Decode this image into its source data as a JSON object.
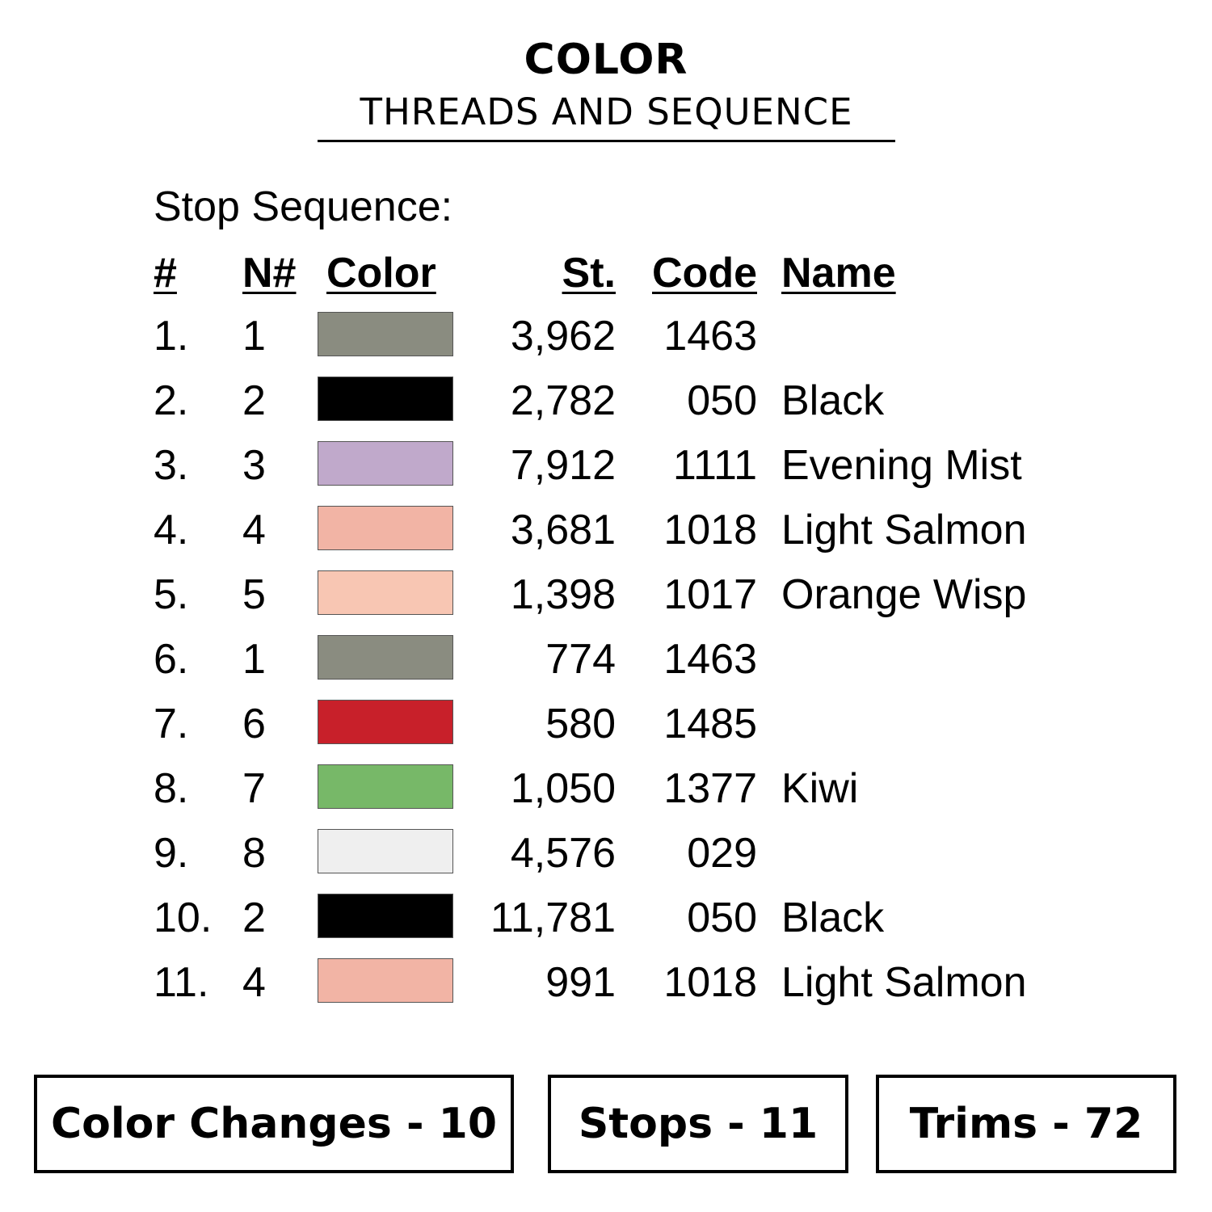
{
  "title": "COLOR",
  "subtitle": "THREADS AND SEQUENCE",
  "stop_sequence_label": "Stop Sequence:",
  "headers": {
    "index": "#",
    "needle": "N#",
    "color": "Color",
    "stitches": "St.",
    "code": "Code",
    "name": "Name"
  },
  "rows": [
    {
      "index": "1.",
      "needle": "1",
      "color": "#8a8c80",
      "stitches": "3,962",
      "code": "1463",
      "name": ""
    },
    {
      "index": "2.",
      "needle": "2",
      "color": "#000000",
      "stitches": "2,782",
      "code": "050",
      "name": "Black"
    },
    {
      "index": "3.",
      "needle": "3",
      "color": "#c0a9cb",
      "stitches": "7,912",
      "code": "1111",
      "name": "Evening Mist"
    },
    {
      "index": "4.",
      "needle": "4",
      "color": "#f2b4a5",
      "stitches": "3,681",
      "code": "1018",
      "name": "Light Salmon"
    },
    {
      "index": "5.",
      "needle": "5",
      "color": "#f8c6b3",
      "stitches": "1,398",
      "code": "1017",
      "name": "Orange Wisp"
    },
    {
      "index": "6.",
      "needle": "1",
      "color": "#8a8c80",
      "stitches": "774",
      "code": "1463",
      "name": ""
    },
    {
      "index": "7.",
      "needle": "6",
      "color": "#c8202a",
      "stitches": "580",
      "code": "1485",
      "name": ""
    },
    {
      "index": "8.",
      "needle": "7",
      "color": "#77b868",
      "stitches": "1,050",
      "code": "1377",
      "name": "Kiwi"
    },
    {
      "index": "9.",
      "needle": "8",
      "color": "#efefef",
      "stitches": "4,576",
      "code": "029",
      "name": ""
    },
    {
      "index": "10.",
      "needle": "2",
      "color": "#000000",
      "stitches": "11,781",
      "code": "050",
      "name": "Black"
    },
    {
      "index": "11.",
      "needle": "4",
      "color": "#f2b4a5",
      "stitches": "991",
      "code": "1018",
      "name": "Light Salmon"
    }
  ],
  "summary": {
    "color_changes": "Color Changes - 10",
    "stops": "Stops - 11",
    "trims": "Trims - 72"
  }
}
